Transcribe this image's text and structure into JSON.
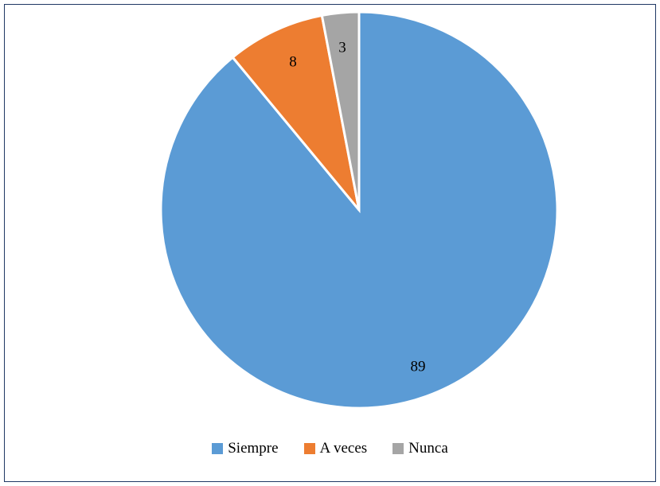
{
  "chart_data": {
    "type": "pie",
    "categories": [
      "Siempre",
      "A veces",
      "Nunca"
    ],
    "values": [
      89,
      8,
      3
    ],
    "colors": [
      "#5b9bd5",
      "#ed7d31",
      "#a5a5a5"
    ],
    "data_labels": [
      "89",
      "8",
      "3"
    ],
    "legend_position": "bottom",
    "start_angle": "12 o'clock",
    "direction": "clockwise"
  }
}
